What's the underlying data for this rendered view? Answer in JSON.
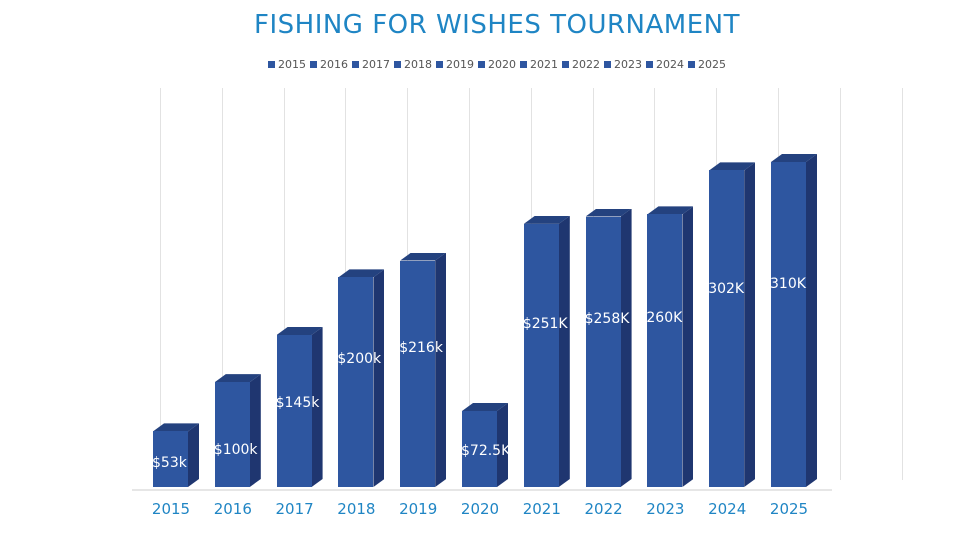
{
  "chart_data": {
    "type": "bar",
    "title": "FISHING FOR WISHES TOURNAMENT",
    "xlabel": "",
    "ylabel": "",
    "categories": [
      "2015",
      "2016",
      "2017",
      "2018",
      "2019",
      "2020",
      "2021",
      "2022",
      "2023",
      "2024",
      "2025"
    ],
    "values": [
      53000,
      100000,
      145000,
      200000,
      216000,
      72500,
      251000,
      258000,
      260000,
      302000,
      310000
    ],
    "data_labels": [
      "$53k",
      "$100k",
      "$145k",
      "$200k",
      "$216k",
      "$72.5K",
      "$251K",
      "$258K",
      "260K",
      "302K",
      "310K"
    ],
    "legend": [
      "2015",
      "2016",
      "2017",
      "2018",
      "2019",
      "2020",
      "2021",
      "2022",
      "2023",
      "2024",
      "2025"
    ],
    "legend_position": "top",
    "grid": true,
    "style": "3d-column",
    "colors": {
      "bar": "#2e56a0",
      "title": "#1f85c4",
      "tick": "#1f85c4"
    }
  }
}
